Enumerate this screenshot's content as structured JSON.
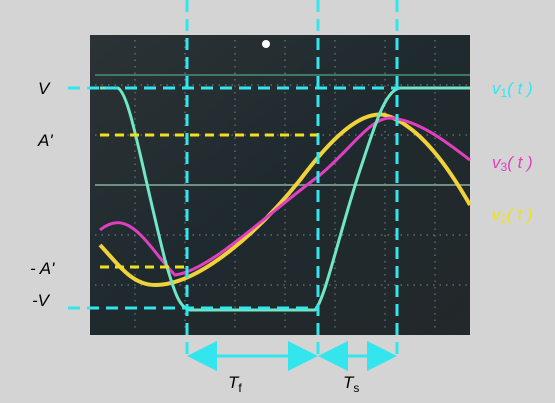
{
  "levels": {
    "high": "V",
    "amp": "A'",
    "neg_amp": "- A'",
    "low": "-V"
  },
  "traces": [
    {
      "base": "v",
      "sub": "1",
      "arg": "( t )"
    },
    {
      "base": "v",
      "sub": "3",
      "arg": "( t )"
    },
    {
      "base": "v",
      "sub": "2",
      "arg": "( t )"
    }
  ],
  "intervals": [
    {
      "base": "T",
      "sub": "f"
    },
    {
      "base": "T",
      "sub": "s"
    }
  ]
}
